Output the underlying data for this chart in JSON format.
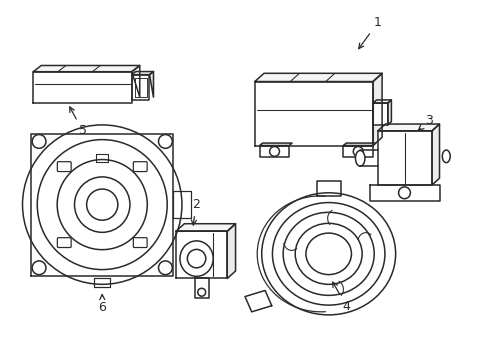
{
  "background_color": "#ffffff",
  "line_color": "#2a2a2a",
  "line_width": 1.1,
  "fig_width": 4.9,
  "fig_height": 3.6,
  "dpi": 100
}
